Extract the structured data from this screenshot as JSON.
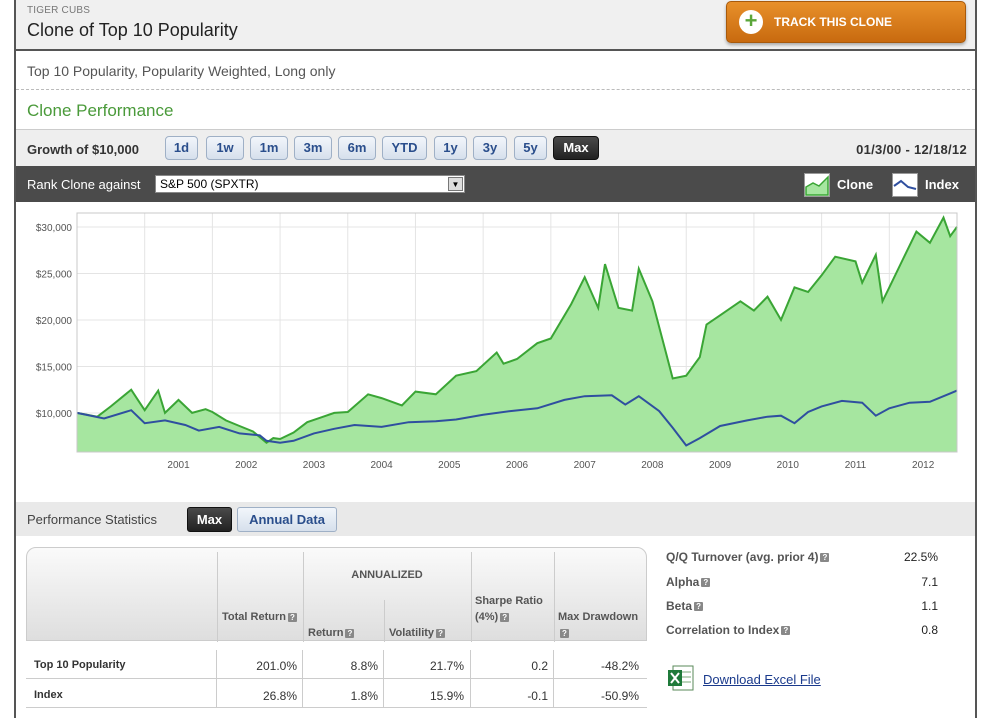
{
  "header": {
    "supertitle": "TIGER CUBS",
    "title": "Clone of Top 10 Popularity",
    "track_label": "TRACK THIS CLONE"
  },
  "description": "Top 10 Popularity, Popularity Weighted, Long only",
  "section_title": "Clone Performance",
  "growth": {
    "label": "Growth of $10,000",
    "ranges": [
      "1d",
      "1w",
      "1m",
      "3m",
      "6m",
      "YTD",
      "1y",
      "3y",
      "5y",
      "Max"
    ],
    "active_range": "Max",
    "date_range": "01/3/00 - 12/18/12"
  },
  "rank": {
    "label": "Rank Clone against",
    "selected": "S&P 500 (SPXTR)",
    "legend": [
      {
        "name": "Clone",
        "color": "#3aa535"
      },
      {
        "name": "Index",
        "color": "#2f4f9f"
      }
    ]
  },
  "chart_data": {
    "type": "area",
    "yticks": [
      "$30,000",
      "$25,000",
      "$20,000",
      "$15,000",
      "$10,000"
    ],
    "ytick_values": [
      30000,
      25000,
      20000,
      15000,
      10000
    ],
    "ylim": [
      5800,
      31500
    ],
    "xlim": [
      2000.0,
      2013.0
    ],
    "xticks": [
      "2001",
      "2002",
      "2003",
      "2004",
      "2005",
      "2006",
      "2007",
      "2008",
      "2009",
      "2010",
      "2011",
      "2012"
    ],
    "grid": true,
    "series": [
      {
        "name": "Clone",
        "color": "#3aa535",
        "fill": "#a6e6a0",
        "x": [
          2000.0,
          2000.3,
          2000.5,
          2000.8,
          2000.9,
          2001.0,
          2001.2,
          2001.3,
          2001.5,
          2001.7,
          2001.9,
          2002.0,
          2002.2,
          2002.4,
          2002.6,
          2002.8,
          2002.9,
          2003.0,
          2003.2,
          2003.4,
          2003.6,
          2003.8,
          2004.0,
          2004.3,
          2004.5,
          2004.8,
          2005.0,
          2005.3,
          2005.6,
          2005.9,
          2006.2,
          2006.3,
          2006.5,
          2006.8,
          2007.0,
          2007.3,
          2007.5,
          2007.7,
          2007.8,
          2008.0,
          2008.2,
          2008.3,
          2008.5,
          2008.7,
          2008.8,
          2009.0,
          2009.2,
          2009.3,
          2009.5,
          2009.8,
          2010.0,
          2010.2,
          2010.4,
          2010.6,
          2010.8,
          2011.0,
          2011.2,
          2011.5,
          2011.6,
          2011.8,
          2011.9,
          2012.0,
          2012.2,
          2012.4,
          2012.6,
          2012.8,
          2012.9,
          2013.0
        ],
        "y": [
          10000,
          9600,
          10700,
          12500,
          11400,
          10300,
          12400,
          10000,
          11400,
          10000,
          10400,
          10100,
          9200,
          8600,
          8000,
          6800,
          7300,
          7200,
          7900,
          9000,
          9500,
          10000,
          10100,
          12000,
          11600,
          10800,
          12300,
          12000,
          14000,
          14500,
          16500,
          15300,
          15800,
          17500,
          18000,
          21700,
          24600,
          21300,
          26000,
          21300,
          21000,
          25500,
          22000,
          16500,
          13700,
          14000,
          16000,
          19500,
          20500,
          22000,
          21000,
          22500,
          20000,
          23500,
          23000,
          24800,
          26800,
          26300,
          24000,
          27000,
          22000,
          23500,
          26500,
          29500,
          28300,
          31000,
          29000,
          30000
        ]
      },
      {
        "name": "Index",
        "color": "#2f4f9f",
        "x": [
          2000.0,
          2000.4,
          2000.8,
          2001.0,
          2001.3,
          2001.6,
          2001.8,
          2002.1,
          2002.4,
          2002.7,
          2002.8,
          2003.0,
          2003.2,
          2003.5,
          2003.8,
          2004.1,
          2004.5,
          2004.9,
          2005.3,
          2005.6,
          2006.0,
          2006.4,
          2006.8,
          2007.2,
          2007.5,
          2007.9,
          2008.1,
          2008.3,
          2008.6,
          2008.8,
          2009.0,
          2009.2,
          2009.5,
          2009.9,
          2010.2,
          2010.4,
          2010.6,
          2010.8,
          2011.0,
          2011.3,
          2011.6,
          2011.8,
          2012.0,
          2012.3,
          2012.6,
          2012.9,
          2013.0
        ],
        "y": [
          10000,
          9400,
          10300,
          8900,
          9200,
          8700,
          8100,
          8500,
          7800,
          7600,
          7000,
          6800,
          7000,
          7800,
          8300,
          8700,
          8500,
          9000,
          9100,
          9300,
          9800,
          10200,
          10500,
          11400,
          11800,
          11900,
          10900,
          11800,
          10200,
          8400,
          6500,
          7300,
          8600,
          9200,
          9600,
          9700,
          8900,
          10100,
          10700,
          11300,
          11100,
          9700,
          10500,
          11100,
          11200,
          12100,
          12400
        ]
      }
    ]
  },
  "stats": {
    "label": "Performance Statistics",
    "tabs": [
      "Max",
      "Annual Data"
    ],
    "annualized_label": "ANNUALIZED",
    "columns": [
      "Total Return",
      "Return",
      "Volatility",
      "Sharpe Ratio (4%)",
      "Max Drawdown"
    ],
    "rows": [
      {
        "name": "Top 10 Popularity",
        "values": [
          "201.0%",
          "8.8%",
          "21.7%",
          "0.2",
          "-48.2%"
        ]
      },
      {
        "name": "Index",
        "values": [
          "26.8%",
          "1.8%",
          "15.9%",
          "-0.1",
          "-50.9%"
        ]
      }
    ]
  },
  "side": [
    {
      "label": "Q/Q Turnover (avg. prior 4)",
      "value": "22.5%"
    },
    {
      "label": "Alpha",
      "value": "7.1"
    },
    {
      "label": "Beta",
      "value": "1.1"
    },
    {
      "label": "Correlation to Index",
      "value": "0.8"
    }
  ],
  "download_label": "Download Excel File"
}
